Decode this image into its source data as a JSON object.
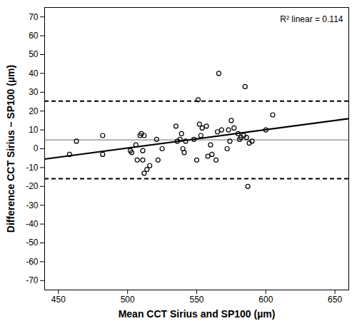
{
  "chart_data": {
    "type": "scatter",
    "x_label": "Mean CCT Sirius and SP100 (µm)",
    "y_label": "Difference CCT Sirius – SP100 (µm)",
    "annotation": "R² linear = 0.114",
    "xlim": [
      440,
      660
    ],
    "xticks": [
      450,
      500,
      550,
      600,
      650
    ],
    "ylim": [
      -75,
      75
    ],
    "yticks": [
      -70,
      -60,
      -50,
      -40,
      -30,
      -20,
      -10,
      0,
      10,
      20,
      30,
      40,
      50,
      60,
      70
    ],
    "marker": "open circle",
    "color": "#000000",
    "x": [
      458,
      463,
      482,
      482,
      502,
      503,
      506,
      507,
      509,
      510,
      511,
      511,
      512,
      512,
      514,
      516,
      521,
      522,
      525,
      535,
      536,
      538,
      539,
      540,
      541,
      542,
      548,
      550,
      551,
      552,
      553,
      554,
      557,
      558,
      560,
      561,
      564,
      565,
      566,
      568,
      572,
      573,
      574,
      575,
      577,
      580,
      581,
      582,
      584,
      585,
      586,
      587,
      588,
      590,
      600,
      605
    ],
    "values": [
      -3,
      4,
      7,
      -3,
      -1,
      -2,
      2,
      -6,
      7,
      8,
      -6,
      -1,
      -13,
      7,
      -11,
      -9,
      5,
      -6,
      0,
      12,
      4,
      5,
      8,
      0,
      -2,
      4,
      5,
      -6,
      26,
      13,
      7,
      11,
      12,
      -4,
      2,
      -3,
      -6,
      9,
      40,
      10,
      0,
      10,
      4,
      15,
      11,
      8,
      5,
      6,
      7,
      33,
      6,
      -20,
      3,
      4,
      10,
      18
    ],
    "reference_lines": [
      {
        "value": 4.7,
        "line_style": "solid",
        "color": "#888888"
      },
      {
        "value": 25.3,
        "line_style": "dashed",
        "color": "#000000"
      },
      {
        "value": -15.9,
        "line_style": "dashed",
        "color": "#000000"
      }
    ],
    "fit_line": {
      "x": [
        440,
        660
      ],
      "y": [
        -5.5,
        16
      ],
      "line_style": "solid",
      "color": "#000000"
    }
  }
}
